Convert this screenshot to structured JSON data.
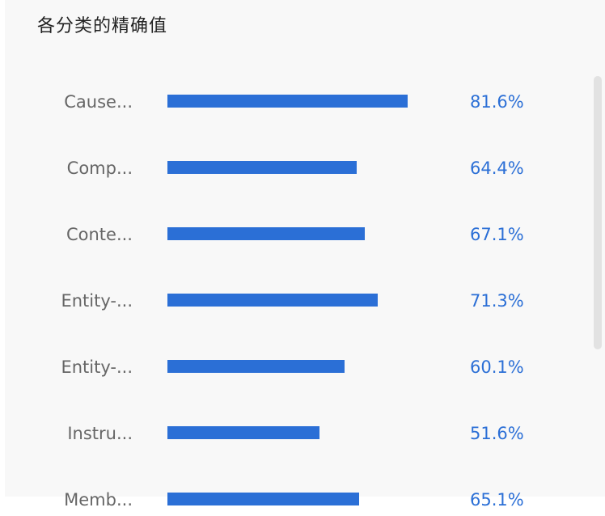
{
  "panel": {
    "title": "各分类的精确值"
  },
  "colors": {
    "bar": "#2b6fd6",
    "value_text": "#2b6fd6",
    "label_text": "#666666"
  },
  "chart_data": {
    "type": "bar",
    "orientation": "horizontal",
    "title": "",
    "xlabel": "",
    "ylabel": "",
    "xlim": [
      0,
      100
    ],
    "grid": false,
    "categories": [
      "Cause...",
      "Comp...",
      "Conte...",
      "Entity-...",
      "Entity-...",
      "Instru...",
      "Memb..."
    ],
    "values": [
      81.6,
      64.4,
      67.1,
      71.3,
      60.1,
      51.6,
      65.1
    ],
    "value_labels": [
      "81.6%",
      "64.4%",
      "67.1%",
      "71.3%",
      "60.1%",
      "51.6%",
      "65.1%"
    ]
  }
}
